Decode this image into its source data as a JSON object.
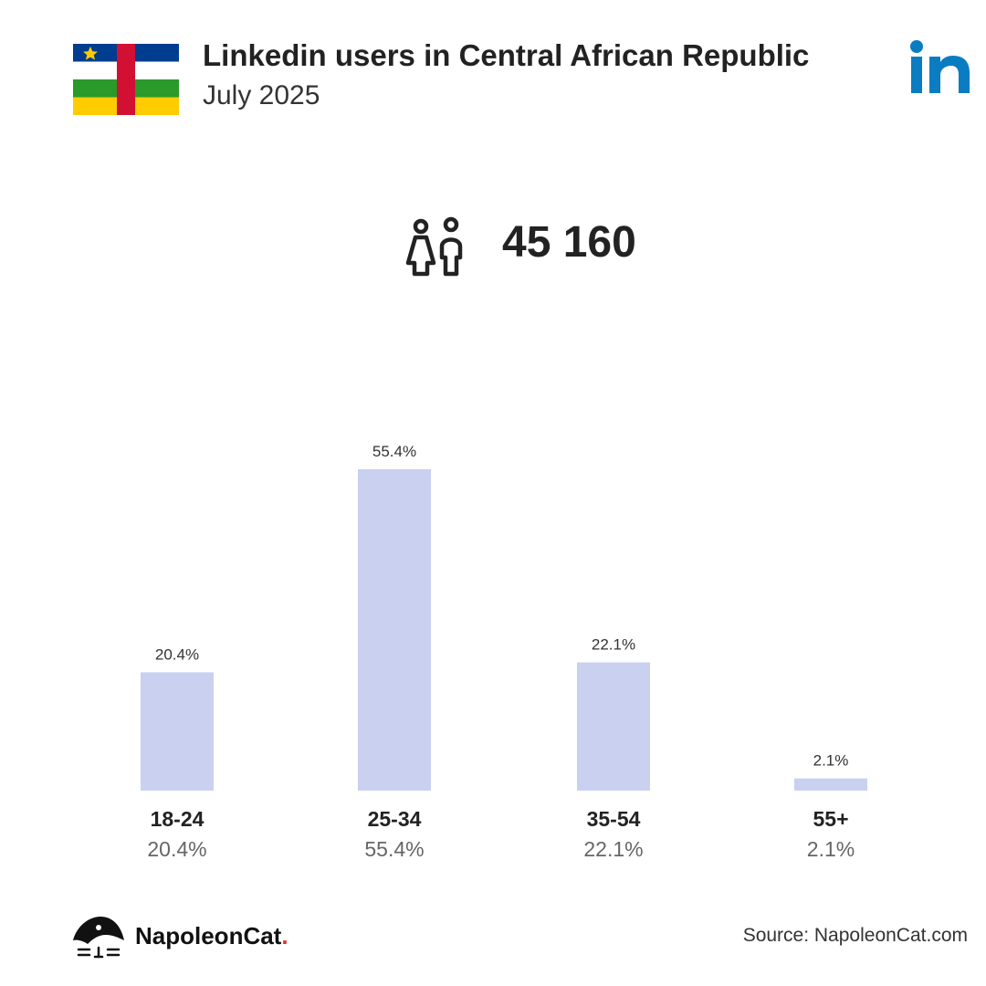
{
  "header": {
    "title": "Linkedin users in Central African Republic",
    "subtitle": "July 2025",
    "flag_icon": "central-african-republic-flag",
    "logo_icon": "linkedin-logo-icon"
  },
  "summary": {
    "total_users": "45 160",
    "icon": "users-icon"
  },
  "chart_data": {
    "type": "bar",
    "categories": [
      "18-24",
      "25-34",
      "35-54",
      "55+"
    ],
    "values": [
      20.4,
      55.4,
      22.1,
      2.1
    ],
    "value_labels": [
      "20.4%",
      "55.4%",
      "22.1%",
      "2.1%"
    ],
    "bar_color": "#c9d0f0",
    "ylim": [
      0,
      55.4
    ],
    "grid": false
  },
  "footer": {
    "brand": "NapoleonCat",
    "brand_dot": ".",
    "source": "Source: NapoleonCat.com",
    "brand_icon": "napoleoncat-logo-icon"
  },
  "colors": {
    "linkedin_blue": "#0a7cc1",
    "bar": "#c9d0f0",
    "brand_dot": "#e0322e"
  }
}
